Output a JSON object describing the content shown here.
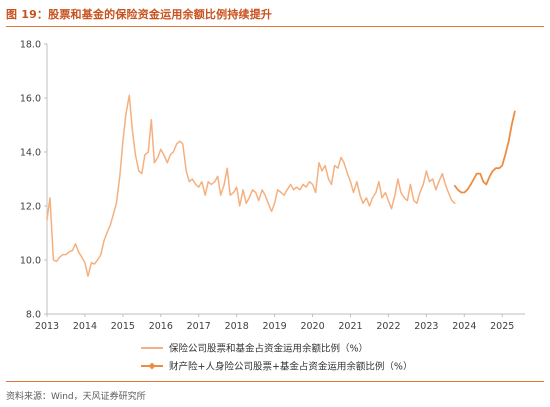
{
  "title": "图 19：股票和基金的保险资金运用余额比例持续提升",
  "source": "资料来源：Wind，天风证券研究所",
  "colors": {
    "title": "#c8511e",
    "series1": "#f5b07f",
    "series2": "#ee8c42",
    "axis": "#bfbfbf"
  },
  "chart_data": {
    "type": "line",
    "xlim": [
      2013,
      2025.6
    ],
    "ylim": [
      8,
      18
    ],
    "yticks": [
      "8.0",
      "10.0",
      "12.0",
      "14.0",
      "16.0",
      "18.0"
    ],
    "xticks": [
      "2013",
      "2014",
      "2015",
      "2016",
      "2017",
      "2018",
      "2019",
      "2020",
      "2021",
      "2022",
      "2023",
      "2024",
      "2025"
    ],
    "grid": false,
    "legend_position": "bottom",
    "series": [
      {
        "name": "保险公司股票和基金占资金运用余额比例（%）",
        "points": [
          [
            2013.0,
            11.5
          ],
          [
            2013.08,
            12.3
          ],
          [
            2013.17,
            10.0
          ],
          [
            2013.25,
            9.95
          ],
          [
            2013.33,
            10.1
          ],
          [
            2013.42,
            10.2
          ],
          [
            2013.5,
            10.2
          ],
          [
            2013.58,
            10.3
          ],
          [
            2013.67,
            10.35
          ],
          [
            2013.75,
            10.6
          ],
          [
            2013.83,
            10.3
          ],
          [
            2013.92,
            10.1
          ],
          [
            2014.0,
            9.9
          ],
          [
            2014.08,
            9.4
          ],
          [
            2014.17,
            9.9
          ],
          [
            2014.25,
            9.85
          ],
          [
            2014.33,
            10.0
          ],
          [
            2014.42,
            10.2
          ],
          [
            2014.5,
            10.7
          ],
          [
            2014.58,
            11.0
          ],
          [
            2014.67,
            11.3
          ],
          [
            2014.75,
            11.7
          ],
          [
            2014.83,
            12.1
          ],
          [
            2014.92,
            13.1
          ],
          [
            2015.0,
            14.4
          ],
          [
            2015.08,
            15.4
          ],
          [
            2015.17,
            16.1
          ],
          [
            2015.25,
            14.8
          ],
          [
            2015.33,
            13.9
          ],
          [
            2015.42,
            13.3
          ],
          [
            2015.5,
            13.2
          ],
          [
            2015.58,
            13.9
          ],
          [
            2015.67,
            14.0
          ],
          [
            2015.75,
            15.2
          ],
          [
            2015.83,
            13.6
          ],
          [
            2015.92,
            13.8
          ],
          [
            2016.0,
            14.1
          ],
          [
            2016.08,
            13.9
          ],
          [
            2016.17,
            13.6
          ],
          [
            2016.25,
            13.9
          ],
          [
            2016.33,
            14.0
          ],
          [
            2016.42,
            14.3
          ],
          [
            2016.5,
            14.4
          ],
          [
            2016.58,
            14.3
          ],
          [
            2016.67,
            13.3
          ],
          [
            2016.75,
            12.9
          ],
          [
            2016.83,
            13.0
          ],
          [
            2016.92,
            12.8
          ],
          [
            2017.0,
            12.7
          ],
          [
            2017.08,
            12.9
          ],
          [
            2017.17,
            12.4
          ],
          [
            2017.25,
            12.9
          ],
          [
            2017.33,
            12.8
          ],
          [
            2017.42,
            12.9
          ],
          [
            2017.5,
            13.1
          ],
          [
            2017.58,
            12.4
          ],
          [
            2017.67,
            12.8
          ],
          [
            2017.75,
            13.4
          ],
          [
            2017.83,
            12.4
          ],
          [
            2017.92,
            12.5
          ],
          [
            2018.0,
            12.7
          ],
          [
            2018.08,
            12.0
          ],
          [
            2018.17,
            12.6
          ],
          [
            2018.25,
            12.1
          ],
          [
            2018.33,
            12.3
          ],
          [
            2018.42,
            12.6
          ],
          [
            2018.5,
            12.5
          ],
          [
            2018.58,
            12.2
          ],
          [
            2018.67,
            12.6
          ],
          [
            2018.75,
            12.4
          ],
          [
            2018.83,
            12.1
          ],
          [
            2018.92,
            11.8
          ],
          [
            2019.0,
            12.1
          ],
          [
            2019.08,
            12.6
          ],
          [
            2019.17,
            12.5
          ],
          [
            2019.25,
            12.4
          ],
          [
            2019.33,
            12.6
          ],
          [
            2019.42,
            12.8
          ],
          [
            2019.5,
            12.6
          ],
          [
            2019.58,
            12.7
          ],
          [
            2019.67,
            12.6
          ],
          [
            2019.75,
            12.8
          ],
          [
            2019.83,
            12.7
          ],
          [
            2019.92,
            12.9
          ],
          [
            2020.0,
            12.8
          ],
          [
            2020.08,
            12.5
          ],
          [
            2020.17,
            13.6
          ],
          [
            2020.25,
            13.3
          ],
          [
            2020.33,
            13.5
          ],
          [
            2020.42,
            13.0
          ],
          [
            2020.5,
            12.8
          ],
          [
            2020.58,
            13.5
          ],
          [
            2020.67,
            13.4
          ],
          [
            2020.75,
            13.8
          ],
          [
            2020.83,
            13.6
          ],
          [
            2020.92,
            13.2
          ],
          [
            2021.0,
            12.9
          ],
          [
            2021.08,
            12.5
          ],
          [
            2021.17,
            12.9
          ],
          [
            2021.25,
            12.4
          ],
          [
            2021.33,
            12.1
          ],
          [
            2021.42,
            12.3
          ],
          [
            2021.5,
            12.0
          ],
          [
            2021.58,
            12.3
          ],
          [
            2021.67,
            12.5
          ],
          [
            2021.75,
            12.9
          ],
          [
            2021.83,
            12.3
          ],
          [
            2021.92,
            12.5
          ],
          [
            2022.0,
            12.2
          ],
          [
            2022.08,
            11.9
          ],
          [
            2022.17,
            12.4
          ],
          [
            2022.25,
            13.0
          ],
          [
            2022.33,
            12.5
          ],
          [
            2022.42,
            12.3
          ],
          [
            2022.5,
            12.2
          ],
          [
            2022.58,
            12.8
          ],
          [
            2022.67,
            12.2
          ],
          [
            2022.75,
            12.1
          ],
          [
            2022.83,
            12.5
          ],
          [
            2022.92,
            12.8
          ],
          [
            2023.0,
            13.3
          ],
          [
            2023.08,
            12.9
          ],
          [
            2023.17,
            13.0
          ],
          [
            2023.25,
            12.6
          ],
          [
            2023.33,
            12.9
          ],
          [
            2023.42,
            13.2
          ],
          [
            2023.5,
            12.8
          ],
          [
            2023.58,
            12.5
          ],
          [
            2023.67,
            12.2
          ],
          [
            2023.75,
            12.1
          ]
        ]
      },
      {
        "name": "财产险+人身险公司股票+基金占资金运用余额比例（%）",
        "points": [
          [
            2023.75,
            12.75
          ],
          [
            2023.83,
            12.6
          ],
          [
            2023.92,
            12.5
          ],
          [
            2024.0,
            12.5
          ],
          [
            2024.08,
            12.6
          ],
          [
            2024.17,
            12.8
          ],
          [
            2024.25,
            13.0
          ],
          [
            2024.33,
            13.2
          ],
          [
            2024.42,
            13.2
          ],
          [
            2024.5,
            12.9
          ],
          [
            2024.58,
            12.8
          ],
          [
            2024.67,
            13.1
          ],
          [
            2024.75,
            13.3
          ],
          [
            2024.83,
            13.4
          ],
          [
            2024.92,
            13.4
          ],
          [
            2025.0,
            13.5
          ],
          [
            2025.08,
            13.9
          ],
          [
            2025.17,
            14.4
          ],
          [
            2025.25,
            15.0
          ],
          [
            2025.33,
            15.5
          ]
        ]
      }
    ]
  }
}
